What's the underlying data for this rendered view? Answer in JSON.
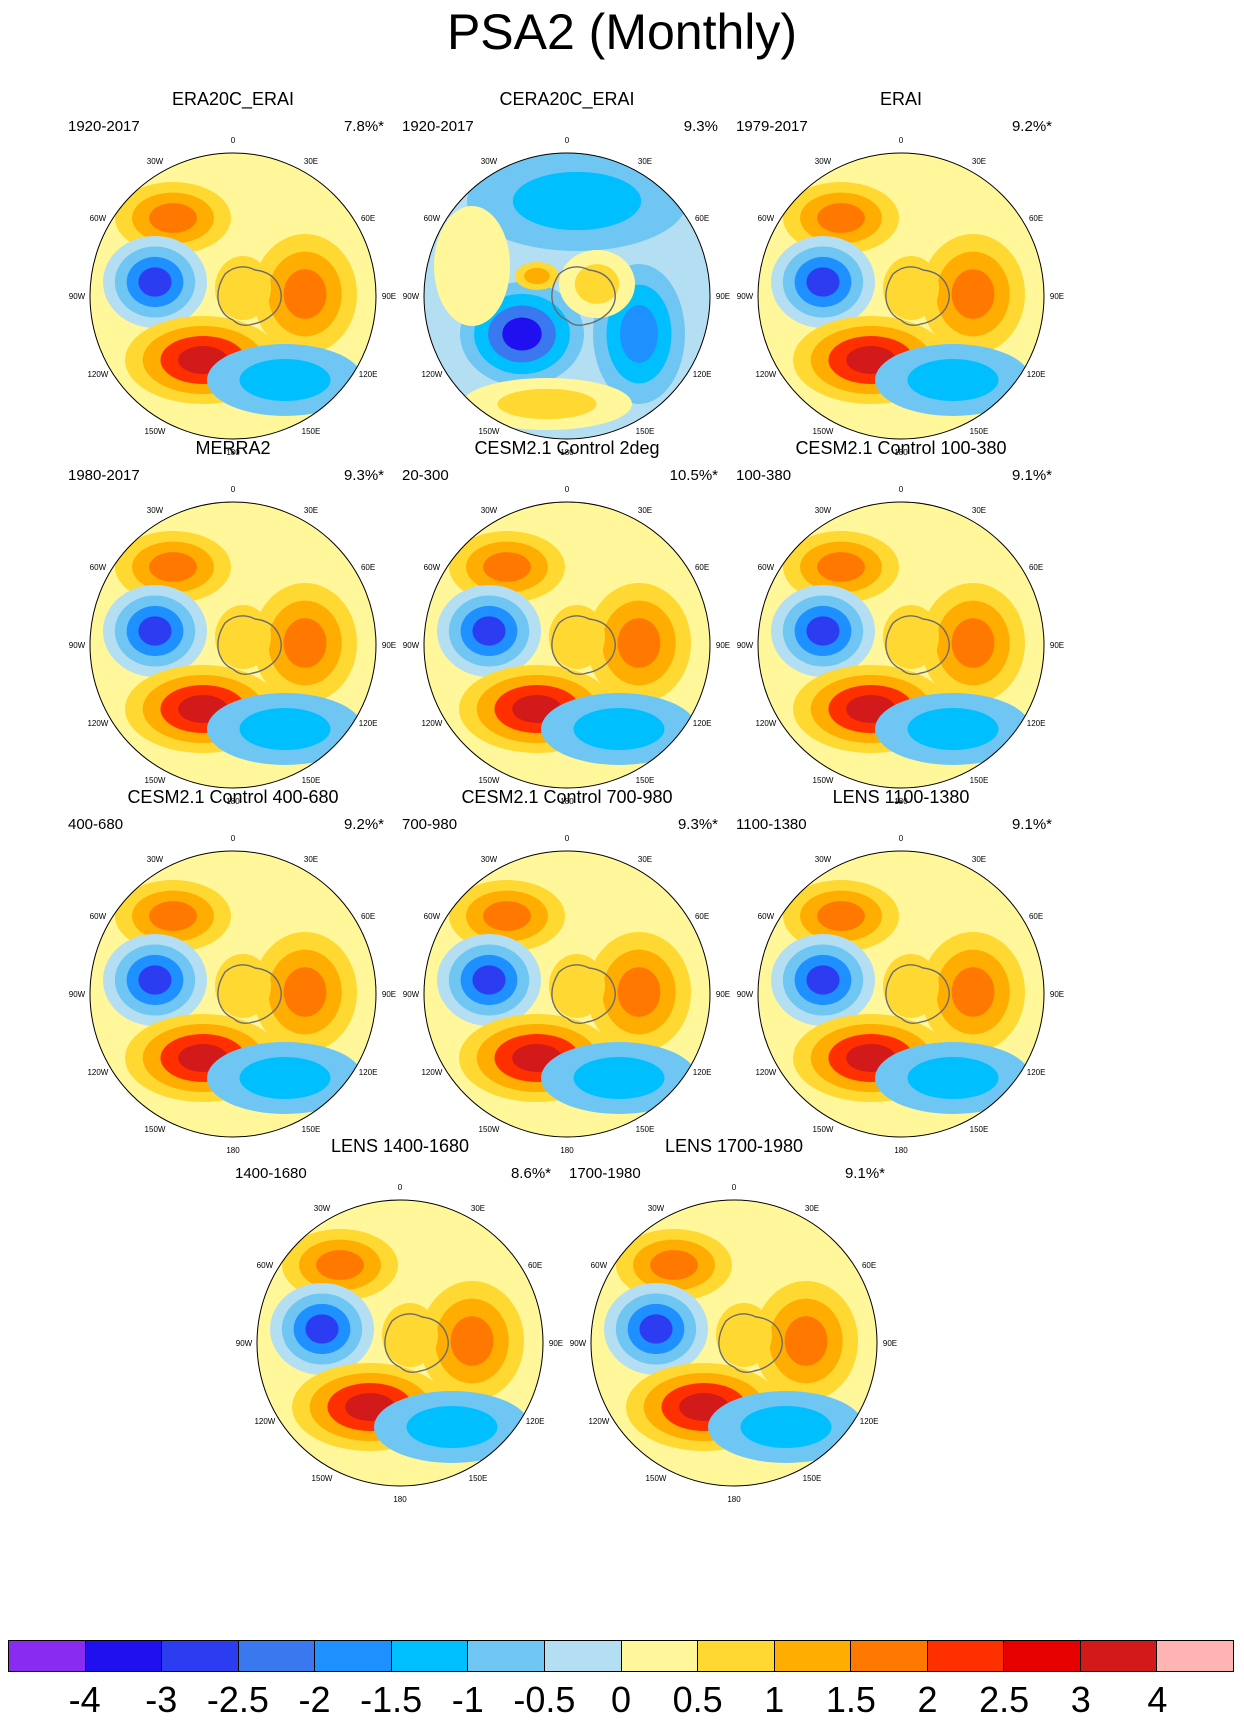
{
  "title": "PSA2 (Monthly)",
  "lon_labels": [
    "0",
    "30E",
    "60E",
    "90E",
    "120E",
    "150E",
    "180",
    "150W",
    "120W",
    "90W",
    "60W",
    "30W"
  ],
  "panels": [
    {
      "title": "ERA20C_ERAI",
      "period": "1920-2017",
      "pct": "7.8%*",
      "pattern": "A"
    },
    {
      "title": "CERA20C_ERAI",
      "period": "1920-2017",
      "pct": "9.3%",
      "pattern": "B"
    },
    {
      "title": "ERAI",
      "period": "1979-2017",
      "pct": "9.2%*",
      "pattern": "A"
    },
    {
      "title": "MERRA2",
      "period": "1980-2017",
      "pct": "9.3%*",
      "pattern": "A"
    },
    {
      "title": "CESM2.1 Control 2deg",
      "period": "20-300",
      "pct": "10.5%*",
      "pattern": "A"
    },
    {
      "title": "CESM2.1 Control 100-380",
      "period": "100-380",
      "pct": "9.1%*",
      "pattern": "A"
    },
    {
      "title": "CESM2.1 Control 400-680",
      "period": "400-680",
      "pct": "9.2%*",
      "pattern": "A"
    },
    {
      "title": "CESM2.1 Control 700-980",
      "period": "700-980",
      "pct": "9.3%*",
      "pattern": "A"
    },
    {
      "title": "LENS 1100-1380",
      "period": "1100-1380",
      "pct": "9.1%*",
      "pattern": "A"
    },
    {
      "title": "LENS 1400-1680",
      "period": "1400-1680",
      "pct": "8.6%*",
      "pattern": "A"
    },
    {
      "title": "LENS 1700-1980",
      "period": "1700-1980",
      "pct": "9.1%*",
      "pattern": "A"
    }
  ],
  "colorbar": {
    "colors": [
      "#8a2cf0",
      "#2010f0",
      "#2c3cf0",
      "#3a78f0",
      "#1e90ff",
      "#00bfff",
      "#70c6f2",
      "#b4dff2",
      "#fff799",
      "#ffd832",
      "#ffad00",
      "#ff7800",
      "#ff3000",
      "#e60000",
      "#d21a1a",
      "#ffb4b4"
    ],
    "labels": [
      "-4",
      "-3",
      "-2.5",
      "-2",
      "-1.5",
      "-1",
      "-0.5",
      "0",
      "0.5",
      "1",
      "1.5",
      "2",
      "2.5",
      "3",
      "4"
    ]
  }
}
